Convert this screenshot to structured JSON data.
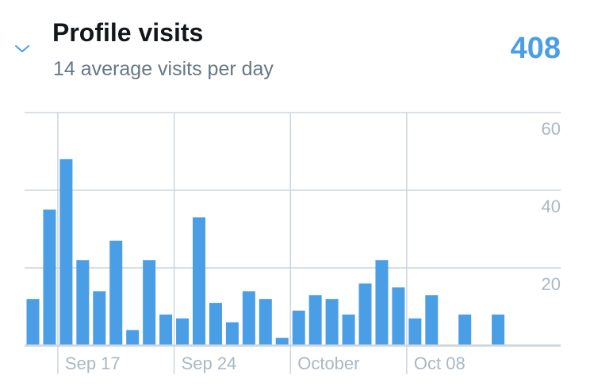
{
  "header": {
    "title": "Profile visits",
    "subtitle": "14 average visits per day",
    "total": "408",
    "toggle_icon": "chevron-down-icon"
  },
  "colors": {
    "bar": "#4a9ee6",
    "total": "#4a9ee6",
    "grid": "#ccd6dd",
    "axis_text": "#aab8c2",
    "title": "#14171a",
    "subtitle": "#657786"
  },
  "chart_data": {
    "type": "bar",
    "ylim": [
      0,
      60
    ],
    "y_ticks": [
      20,
      40,
      60
    ],
    "x_tick_labels": [
      {
        "label": "Sep 17",
        "after_bar": 1
      },
      {
        "label": "Sep 24",
        "after_bar": 8
      },
      {
        "label": "October",
        "after_bar": 15
      },
      {
        "label": "Oct 08",
        "after_bar": 22
      }
    ],
    "values": [
      12,
      35,
      48,
      22,
      14,
      27,
      4,
      22,
      8,
      7,
      33,
      11,
      6,
      14,
      12,
      2,
      9,
      13,
      12,
      8,
      16,
      22,
      15,
      7,
      13,
      0,
      8,
      0,
      8,
      0
    ],
    "grid": true
  }
}
